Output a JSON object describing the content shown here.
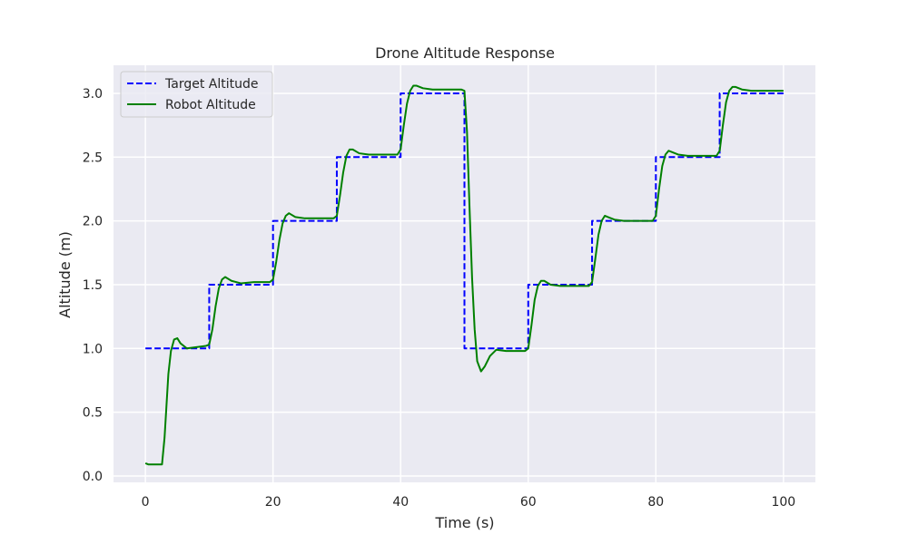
{
  "chart_data": {
    "type": "line",
    "title": "Drone Altitude Response",
    "xlabel": "Time (s)",
    "ylabel": "Altitude (m)",
    "xlim": [
      -5,
      105
    ],
    "ylim": [
      -0.05,
      3.22
    ],
    "xticks": [
      0,
      20,
      40,
      60,
      80,
      100
    ],
    "yticks": [
      0.0,
      0.5,
      1.0,
      1.5,
      2.0,
      2.5,
      3.0
    ],
    "grid": true,
    "legend_position": "top-left",
    "background_color": "#eaeaf2",
    "series": [
      {
        "name": "Target Altitude",
        "style": "dashed",
        "color": "#0000ff",
        "x": [
          0,
          10,
          10,
          20,
          20,
          30,
          30,
          40,
          40,
          50,
          50,
          60,
          60,
          70,
          70,
          80,
          80,
          90,
          90,
          100
        ],
        "y": [
          1.0,
          1.0,
          1.5,
          1.5,
          2.0,
          2.0,
          2.5,
          2.5,
          3.0,
          3.0,
          1.0,
          1.0,
          1.5,
          1.5,
          2.0,
          2.0,
          2.5,
          2.5,
          3.0,
          3.0
        ]
      },
      {
        "name": "Robot Altitude",
        "style": "solid",
        "color": "#008000",
        "x": [
          0,
          0.5,
          2.0,
          2.6,
          3.0,
          3.3,
          3.6,
          4.0,
          4.5,
          5.0,
          5.5,
          6.5,
          8.0,
          9.5,
          10.0,
          10.5,
          11.0,
          11.5,
          12.0,
          12.5,
          13.5,
          15.0,
          17.0,
          19.5,
          20.0,
          20.5,
          21.0,
          21.5,
          22.0,
          22.5,
          23.5,
          25.0,
          27.0,
          29.5,
          30.0,
          30.5,
          31.0,
          31.5,
          32.0,
          32.5,
          33.5,
          35.0,
          37.0,
          39.5,
          40.0,
          40.5,
          41.0,
          41.5,
          42.0,
          42.5,
          43.5,
          45.0,
          47.0,
          49.5,
          50.0,
          50.4,
          50.8,
          51.2,
          51.6,
          52.0,
          52.6,
          53.2,
          54.0,
          55.0,
          56.5,
          58.0,
          59.5,
          60.0,
          60.5,
          61.0,
          61.5,
          62.0,
          62.5,
          63.5,
          65.0,
          67.0,
          69.5,
          70.0,
          70.5,
          71.0,
          71.5,
          72.0,
          72.5,
          73.5,
          75.0,
          77.0,
          79.5,
          80.0,
          80.5,
          81.0,
          81.5,
          82.0,
          82.5,
          83.5,
          85.0,
          87.0,
          89.5,
          90.0,
          90.5,
          91.0,
          91.5,
          92.0,
          92.5,
          93.5,
          95.0,
          97.0,
          100.0
        ],
        "y": [
          0.1,
          0.09,
          0.09,
          0.09,
          0.3,
          0.55,
          0.8,
          0.98,
          1.07,
          1.08,
          1.04,
          1.0,
          1.01,
          1.02,
          1.03,
          1.15,
          1.33,
          1.47,
          1.54,
          1.56,
          1.53,
          1.51,
          1.52,
          1.52,
          1.54,
          1.68,
          1.85,
          1.98,
          2.04,
          2.06,
          2.03,
          2.02,
          2.02,
          2.02,
          2.04,
          2.2,
          2.38,
          2.51,
          2.56,
          2.56,
          2.53,
          2.52,
          2.52,
          2.52,
          2.56,
          2.75,
          2.92,
          3.02,
          3.06,
          3.06,
          3.04,
          3.03,
          3.03,
          3.03,
          3.02,
          2.7,
          2.1,
          1.55,
          1.15,
          0.9,
          0.82,
          0.86,
          0.94,
          0.99,
          0.98,
          0.98,
          0.98,
          1.0,
          1.18,
          1.38,
          1.49,
          1.53,
          1.53,
          1.5,
          1.49,
          1.49,
          1.49,
          1.52,
          1.7,
          1.89,
          2.0,
          2.04,
          2.03,
          2.01,
          2.0,
          2.0,
          2.0,
          2.04,
          2.25,
          2.43,
          2.52,
          2.55,
          2.54,
          2.52,
          2.51,
          2.51,
          2.51,
          2.55,
          2.75,
          2.93,
          3.02,
          3.05,
          3.05,
          3.03,
          3.02,
          3.02,
          3.02
        ]
      }
    ]
  }
}
